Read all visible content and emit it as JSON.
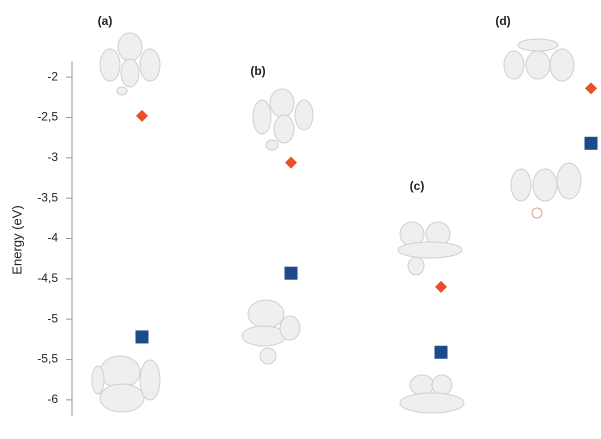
{
  "chart_data": {
    "type": "scatter",
    "y_label": "Energy (eV)",
    "categories": [
      "(a)",
      "(b)",
      "(c)",
      "(d)"
    ],
    "series": [
      {
        "color": "#e8502a",
        "marker": "diamond",
        "values": [
          -2.48,
          -3.06,
          -4.6,
          -2.14
        ]
      },
      {
        "color": "#1f4a8a",
        "marker": "square",
        "values": [
          -5.22,
          -4.43,
          -5.41,
          -2.82
        ]
      }
    ],
    "ylim": [
      -6.2,
      -1.8
    ],
    "yticks": [
      {
        "value": -2,
        "label": "-2"
      },
      {
        "value": -2.5,
        "label": "-2,5"
      },
      {
        "value": -3,
        "label": "-3"
      },
      {
        "value": -3.5,
        "label": "-3,5"
      },
      {
        "value": -4,
        "label": "-4"
      },
      {
        "value": -4.5,
        "label": "-4,5"
      },
      {
        "value": -5,
        "label": "-5"
      },
      {
        "value": -5.5,
        "label": "-5,5"
      },
      {
        "value": -6,
        "label": "-6"
      }
    ]
  }
}
